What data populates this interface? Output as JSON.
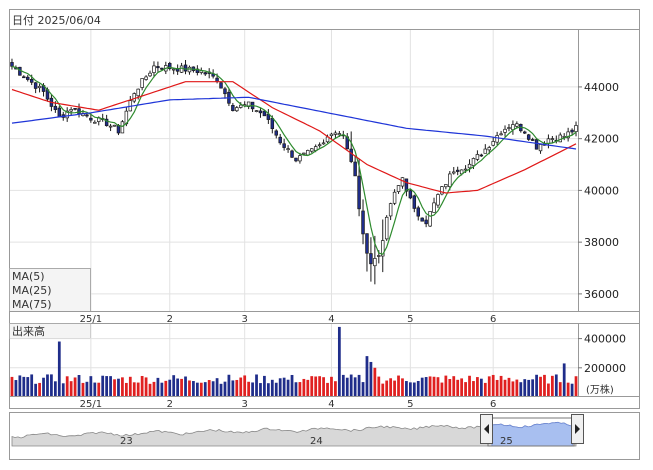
{
  "header": {
    "date_label": "日付 2025/06/04"
  },
  "colors": {
    "up_candle": "#ffffff",
    "down_candle": "#1f2d8a",
    "ma5": "#2e8b2e",
    "ma25": "#e01818",
    "ma75": "#1f35d8",
    "volume_up": "#e02020",
    "volume_down": "#1f2d8a",
    "navigator_fill": "#a8bff0"
  },
  "chart_data": [
    {
      "type": "candlestick",
      "title": "",
      "x_ticks": [
        "25/1",
        "2",
        "3",
        "4",
        "5",
        "6"
      ],
      "y_ticks": [
        "44000",
        "42000",
        "40000",
        "38000",
        "36000"
      ],
      "ylim": [
        35300,
        46200
      ],
      "legend": [
        {
          "name": "MA(5)",
          "color_key": "ma5"
        },
        {
          "name": "MA(25)",
          "color_key": "ma25"
        },
        {
          "name": "MA(75)",
          "color_key": "ma75"
        }
      ],
      "legend_placement": "bottom-left",
      "grid": true,
      "keypoints": [
        [
          0,
          44800
        ],
        [
          8,
          43800
        ],
        [
          12,
          42800
        ],
        [
          15,
          43200
        ],
        [
          20,
          42800
        ],
        [
          24,
          42600
        ],
        [
          27,
          42300
        ],
        [
          31,
          43800
        ],
        [
          36,
          44800
        ],
        [
          43,
          44700
        ],
        [
          48,
          44600
        ],
        [
          52,
          44300
        ],
        [
          56,
          43200
        ],
        [
          60,
          43300
        ],
        [
          64,
          42900
        ],
        [
          68,
          41900
        ],
        [
          72,
          41200
        ],
        [
          76,
          41500
        ],
        [
          79,
          41800
        ],
        [
          81,
          42300
        ],
        [
          84,
          42200
        ],
        [
          87,
          40500
        ],
        [
          89,
          38200
        ],
        [
          91,
          37200
        ],
        [
          93,
          37500
        ],
        [
          96,
          39500
        ],
        [
          99,
          40500
        ],
        [
          102,
          39200
        ],
        [
          105,
          38800
        ],
        [
          108,
          39800
        ],
        [
          112,
          40800
        ],
        [
          116,
          41000
        ],
        [
          120,
          41600
        ],
        [
          124,
          42300
        ],
        [
          127,
          42600
        ],
        [
          130,
          42300
        ],
        [
          133,
          41700
        ],
        [
          136,
          42000
        ],
        [
          140,
          42100
        ],
        [
          143,
          42400
        ]
      ],
      "ma75_keypoints": [
        [
          0,
          42600
        ],
        [
          20,
          43000
        ],
        [
          40,
          43500
        ],
        [
          60,
          43600
        ],
        [
          80,
          43000
        ],
        [
          100,
          42400
        ],
        [
          120,
          42100
        ],
        [
          143,
          41600
        ]
      ],
      "ma25_keypoints": [
        [
          0,
          43900
        ],
        [
          10,
          43400
        ],
        [
          22,
          43100
        ],
        [
          32,
          43600
        ],
        [
          44,
          44200
        ],
        [
          56,
          44200
        ],
        [
          66,
          43200
        ],
        [
          78,
          42300
        ],
        [
          90,
          41000
        ],
        [
          100,
          40300
        ],
        [
          110,
          39900
        ],
        [
          118,
          40000
        ],
        [
          130,
          40800
        ],
        [
          143,
          41800
        ]
      ]
    },
    {
      "type": "bar",
      "title": "出来高",
      "y_ticks": [
        "400000",
        "200000"
      ],
      "unit_label": "(万株)",
      "ylim": [
        0,
        500000
      ],
      "x_ticks": [
        "25/1",
        "2",
        "3",
        "4",
        "5",
        "6"
      ],
      "base_volume": 120000,
      "spikes": [
        {
          "index": 12,
          "value": 380000
        },
        {
          "index": 83,
          "value": 480000
        },
        {
          "index": 90,
          "value": 280000
        },
        {
          "index": 91,
          "value": 240000
        },
        {
          "index": 92,
          "value": 200000
        },
        {
          "index": 140,
          "value": 230000
        }
      ]
    },
    {
      "type": "area",
      "title": "",
      "navigator_labels": [
        "23",
        "24",
        "25"
      ]
    }
  ]
}
